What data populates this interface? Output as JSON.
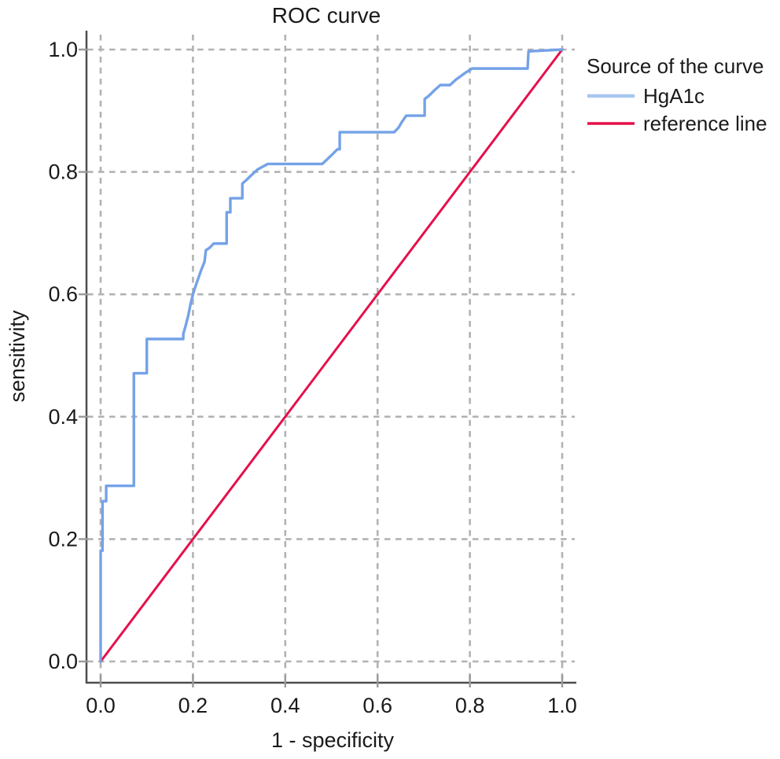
{
  "chart_data": {
    "type": "line",
    "title": "ROC curve",
    "xlabel": "1 - specificity",
    "ylabel": "sensitivity",
    "xlim": [
      0.0,
      1.0
    ],
    "ylim": [
      0.0,
      1.0
    ],
    "x_ticks": [
      "0.0",
      "0.2",
      "0.4",
      "0.6",
      "0.8",
      "1.0"
    ],
    "y_ticks": [
      "0.0",
      "0.2",
      "0.4",
      "0.6",
      "0.8",
      "1.0"
    ],
    "grid": "dashed gray grid on both axes",
    "legend": {
      "title": "Source of the curve",
      "position": "right-top"
    },
    "series": [
      {
        "name": "HgA1c",
        "color": "#74a2e7",
        "swatch_color": "#a8c7f1",
        "style": "step",
        "points": [
          [
            0.0,
            0.0
          ],
          [
            0.0,
            0.181
          ],
          [
            0.004,
            0.181
          ],
          [
            0.004,
            0.262
          ],
          [
            0.012,
            0.262
          ],
          [
            0.012,
            0.287
          ],
          [
            0.072,
            0.287
          ],
          [
            0.072,
            0.471
          ],
          [
            0.1,
            0.471
          ],
          [
            0.1,
            0.527
          ],
          [
            0.179,
            0.527
          ],
          [
            0.179,
            0.535
          ],
          [
            0.185,
            0.551
          ],
          [
            0.19,
            0.566
          ],
          [
            0.195,
            0.585
          ],
          [
            0.2,
            0.6
          ],
          [
            0.205,
            0.612
          ],
          [
            0.211,
            0.625
          ],
          [
            0.218,
            0.64
          ],
          [
            0.225,
            0.653
          ],
          [
            0.228,
            0.672
          ],
          [
            0.236,
            0.676
          ],
          [
            0.245,
            0.683
          ],
          [
            0.273,
            0.683
          ],
          [
            0.273,
            0.734
          ],
          [
            0.281,
            0.734
          ],
          [
            0.281,
            0.757
          ],
          [
            0.307,
            0.757
          ],
          [
            0.307,
            0.781
          ],
          [
            0.316,
            0.787
          ],
          [
            0.327,
            0.795
          ],
          [
            0.34,
            0.804
          ],
          [
            0.352,
            0.809
          ],
          [
            0.362,
            0.813
          ],
          [
            0.48,
            0.813
          ],
          [
            0.49,
            0.82
          ],
          [
            0.501,
            0.828
          ],
          [
            0.513,
            0.837
          ],
          [
            0.518,
            0.837
          ],
          [
            0.518,
            0.865
          ],
          [
            0.636,
            0.865
          ],
          [
            0.645,
            0.872
          ],
          [
            0.653,
            0.882
          ],
          [
            0.662,
            0.892
          ],
          [
            0.702,
            0.892
          ],
          [
            0.702,
            0.919
          ],
          [
            0.712,
            0.925
          ],
          [
            0.724,
            0.934
          ],
          [
            0.736,
            0.942
          ],
          [
            0.757,
            0.942
          ],
          [
            0.77,
            0.951
          ],
          [
            0.79,
            0.962
          ],
          [
            0.805,
            0.969
          ],
          [
            0.925,
            0.969
          ],
          [
            0.927,
            0.997
          ],
          [
            1.0,
            1.0
          ]
        ]
      },
      {
        "name": "reference line",
        "color": "#e6104a",
        "swatch_color": "#e6104a",
        "style": "straight",
        "points": [
          [
            0.0,
            0.0
          ],
          [
            1.0,
            1.0
          ]
        ]
      }
    ],
    "colors": {
      "grid": "#b2b2b2",
      "axis": "#4d4d4d",
      "tick": "#9a9a9a",
      "text": "#1a1a1a",
      "background": "#ffffff"
    }
  }
}
